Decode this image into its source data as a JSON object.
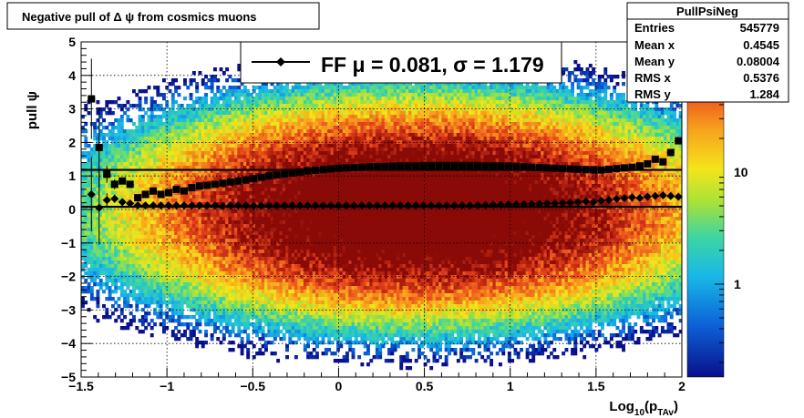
{
  "title": "Negative pull of Δ ψ from cosmics muons",
  "stats": {
    "name": "PullPsiNeg",
    "rows": [
      {
        "label": "Entries",
        "value": "545779"
      },
      {
        "label": "Mean x",
        "value": "0.4545"
      },
      {
        "label": "Mean y",
        "value": "0.08004"
      },
      {
        "label": "RMS x",
        "value": "0.5376"
      },
      {
        "label": "RMS y",
        "value": "1.284"
      }
    ]
  },
  "legend": {
    "prefix": "FF",
    "mu_symbol": "μ",
    "mu_value": "0.081",
    "sigma_symbol": "σ",
    "sigma_value": "1.179"
  },
  "colors": {
    "frame": "#000000",
    "grid": "#000000",
    "markers": "#000000"
  },
  "chart_data": {
    "type": "heatmap",
    "xlabel": "Log₁₀(p_Tₐᵥ)",
    "xlabel_main": "Log",
    "xlabel_sub1": "10",
    "xlabel_mid": "(p",
    "xlabel_sub2": "TAv",
    "xlabel_end": ")",
    "ylabel": "pull ψ",
    "xlim": [
      -1.5,
      2.0
    ],
    "ylim": [
      -5,
      5
    ],
    "x_ticks": [
      "−1.5",
      "−1",
      "−0.5",
      "0",
      "0.5",
      "1",
      "1.5",
      "2"
    ],
    "x_tick_values": [
      -1.5,
      -1,
      -0.5,
      0,
      0.5,
      1,
      1.5,
      2
    ],
    "y_ticks": [
      "−5",
      "−4",
      "−3",
      "−2",
      "−1",
      "0",
      "1",
      "2",
      "3",
      "4",
      "5"
    ],
    "y_tick_values": [
      -5,
      -4,
      -3,
      -2,
      -1,
      0,
      1,
      2,
      3,
      4,
      5
    ],
    "z_scale": "log",
    "z_ticks": [
      "10",
      "1"
    ],
    "z_tick_values": [
      10,
      1
    ],
    "grid": true,
    "density": {
      "center_x": 0.45,
      "center_y": 0.0,
      "rms_x": 0.54,
      "rms_y": 1.28,
      "peak": 100
    },
    "fit_lines": [
      {
        "name": "sigma",
        "y": 1.18
      },
      {
        "name": "mean",
        "y": 0.08
      }
    ],
    "series": [
      {
        "name": "sigma",
        "marker": "square",
        "x": [
          -1.44,
          -1.395,
          -1.35,
          -1.305,
          -1.26,
          -1.215,
          -1.17,
          -1.125,
          -1.08,
          -1.035,
          -0.99,
          -0.945,
          -0.9,
          -0.855,
          -0.81,
          -0.765,
          -0.72,
          -0.675,
          -0.63,
          -0.585,
          -0.54,
          -0.495,
          -0.45,
          -0.405,
          -0.36,
          -0.315,
          -0.27,
          -0.225,
          -0.18,
          -0.135,
          -0.09,
          -0.045,
          0.0,
          0.045,
          0.09,
          0.135,
          0.18,
          0.225,
          0.27,
          0.315,
          0.36,
          0.405,
          0.45,
          0.495,
          0.54,
          0.585,
          0.63,
          0.675,
          0.72,
          0.765,
          0.81,
          0.855,
          0.9,
          0.945,
          0.99,
          1.035,
          1.08,
          1.125,
          1.17,
          1.215,
          1.26,
          1.305,
          1.35,
          1.395,
          1.44,
          1.485,
          1.53,
          1.575,
          1.62,
          1.665,
          1.71,
          1.755,
          1.8,
          1.845,
          1.89,
          1.935,
          1.98
        ],
        "y": [
          3.3,
          1.85,
          1.05,
          0.75,
          0.85,
          0.75,
          0.35,
          0.45,
          0.55,
          0.45,
          0.5,
          0.6,
          0.55,
          0.65,
          0.7,
          0.72,
          0.75,
          0.78,
          0.82,
          0.85,
          0.88,
          0.92,
          0.96,
          1.0,
          1.03,
          1.06,
          1.09,
          1.12,
          1.15,
          1.17,
          1.19,
          1.21,
          1.23,
          1.24,
          1.25,
          1.26,
          1.27,
          1.28,
          1.28,
          1.29,
          1.3,
          1.3,
          1.3,
          1.31,
          1.31,
          1.31,
          1.31,
          1.31,
          1.31,
          1.31,
          1.31,
          1.3,
          1.3,
          1.3,
          1.29,
          1.28,
          1.27,
          1.26,
          1.25,
          1.24,
          1.23,
          1.22,
          1.21,
          1.2,
          1.19,
          1.18,
          1.18,
          1.2,
          1.22,
          1.24,
          1.26,
          1.3,
          1.36,
          1.5,
          1.42,
          1.7,
          2.05
        ],
        "yerr": [
          1.2,
          1.2,
          0.25,
          0.15,
          0.1,
          0.08,
          0.06,
          0.05,
          0.04,
          0.03,
          0.03,
          0.03,
          0.02,
          0.02,
          0.02,
          0.02,
          0.02,
          0.02,
          0.02,
          0.02,
          0.02,
          0.02,
          0.02,
          0.02,
          0.02,
          0.02,
          0.02,
          0.02,
          0.02,
          0.02,
          0.02,
          0.02,
          0.02,
          0.02,
          0.02,
          0.02,
          0.02,
          0.02,
          0.02,
          0.02,
          0.02,
          0.02,
          0.02,
          0.02,
          0.02,
          0.02,
          0.02,
          0.02,
          0.02,
          0.02,
          0.02,
          0.02,
          0.02,
          0.02,
          0.02,
          0.02,
          0.02,
          0.02,
          0.02,
          0.02,
          0.02,
          0.02,
          0.02,
          0.02,
          0.02,
          0.02,
          0.02,
          0.02,
          0.02,
          0.02,
          0.03,
          0.03,
          0.04,
          0.05,
          0.06,
          0.08,
          0.1
        ]
      },
      {
        "name": "mean",
        "marker": "diamond",
        "x": [
          -1.44,
          -1.395,
          -1.35,
          -1.305,
          -1.26,
          -1.215,
          -1.17,
          -1.125,
          -1.08,
          -1.035,
          -0.99,
          -0.945,
          -0.9,
          -0.855,
          -0.81,
          -0.765,
          -0.72,
          -0.675,
          -0.63,
          -0.585,
          -0.54,
          -0.495,
          -0.45,
          -0.405,
          -0.36,
          -0.315,
          -0.27,
          -0.225,
          -0.18,
          -0.135,
          -0.09,
          -0.045,
          0.0,
          0.045,
          0.09,
          0.135,
          0.18,
          0.225,
          0.27,
          0.315,
          0.36,
          0.405,
          0.45,
          0.495,
          0.54,
          0.585,
          0.63,
          0.675,
          0.72,
          0.765,
          0.81,
          0.855,
          0.9,
          0.945,
          0.99,
          1.035,
          1.08,
          1.125,
          1.17,
          1.215,
          1.26,
          1.305,
          1.35,
          1.395,
          1.44,
          1.485,
          1.53,
          1.575,
          1.62,
          1.665,
          1.71,
          1.755,
          1.8,
          1.845,
          1.89,
          1.935,
          1.98
        ],
        "y": [
          0.45,
          0.05,
          0.28,
          0.32,
          0.22,
          0.18,
          0.12,
          0.12,
          0.12,
          0.12,
          0.12,
          0.12,
          0.12,
          0.12,
          0.12,
          0.12,
          0.12,
          0.1,
          0.12,
          0.12,
          0.12,
          0.11,
          0.12,
          0.12,
          0.12,
          0.12,
          0.12,
          0.12,
          0.12,
          0.12,
          0.12,
          0.12,
          0.12,
          0.12,
          0.12,
          0.12,
          0.12,
          0.12,
          0.12,
          0.12,
          0.12,
          0.12,
          0.12,
          0.12,
          0.12,
          0.12,
          0.12,
          0.12,
          0.12,
          0.12,
          0.13,
          0.13,
          0.14,
          0.14,
          0.15,
          0.15,
          0.16,
          0.16,
          0.17,
          0.18,
          0.18,
          0.19,
          0.2,
          0.22,
          0.24,
          0.22,
          0.26,
          0.28,
          0.32,
          0.34,
          0.36,
          0.34,
          0.38,
          0.4,
          0.42,
          0.4,
          0.38
        ],
        "yerr": [
          1.1,
          1.1,
          0.2,
          0.12,
          0.08,
          0.06,
          0.05,
          0.04,
          0.03,
          0.02,
          0.02,
          0.02,
          0.02,
          0.02,
          0.02,
          0.02,
          0.02,
          0.02,
          0.02,
          0.02,
          0.02,
          0.02,
          0.02,
          0.02,
          0.02,
          0.02,
          0.02,
          0.02,
          0.02,
          0.02,
          0.02,
          0.02,
          0.02,
          0.02,
          0.02,
          0.02,
          0.02,
          0.02,
          0.02,
          0.02,
          0.02,
          0.02,
          0.02,
          0.02,
          0.02,
          0.02,
          0.02,
          0.02,
          0.02,
          0.02,
          0.02,
          0.02,
          0.02,
          0.02,
          0.02,
          0.02,
          0.02,
          0.02,
          0.02,
          0.02,
          0.02,
          0.02,
          0.02,
          0.02,
          0.02,
          0.02,
          0.02,
          0.02,
          0.02,
          0.02,
          0.02,
          0.02,
          0.03,
          0.04,
          0.05,
          0.06,
          0.07
        ]
      }
    ]
  }
}
